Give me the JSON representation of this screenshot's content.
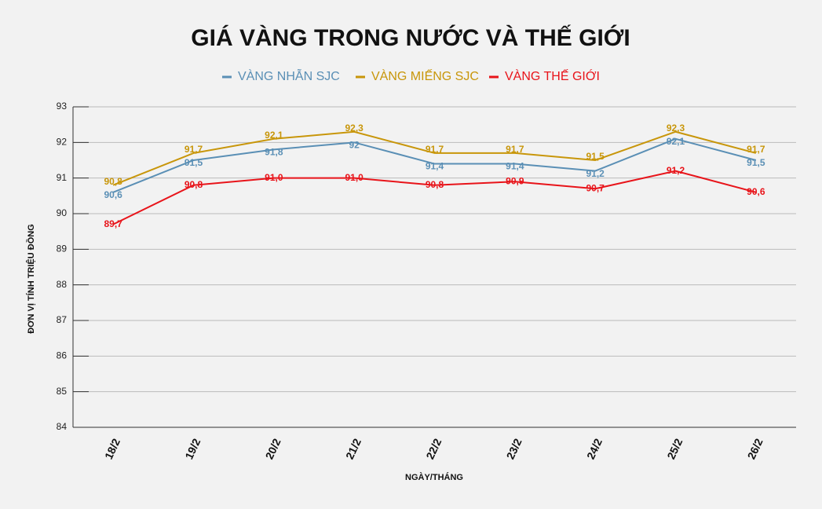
{
  "chart_data": {
    "type": "line",
    "title": "GIÁ VÀNG TRONG NƯỚC VÀ THẾ GIỚI",
    "x_label": "NGÀY/THÁNG",
    "y_label": "ĐƠN VỊ TÍNH TRIỆU ĐỒNG",
    "categories": [
      "18/2",
      "19/2",
      "20/2",
      "21/2",
      "22/2",
      "23/2",
      "24/2",
      "25/2",
      "26/2"
    ],
    "series": [
      {
        "name": "VÀNG NHẪN SJC",
        "color": "#5a8fb5",
        "values": [
          90.6,
          91.5,
          91.8,
          92,
          91.4,
          91.4,
          91.2,
          92.1,
          91.5
        ],
        "value_labels": [
          "90,6",
          "91,5",
          "91,8",
          "92",
          "91,4",
          "91,4",
          "91,2",
          "92,1",
          "91,5"
        ]
      },
      {
        "name": "VÀNG MIẾNG SJC",
        "color": "#c8960a",
        "values": [
          90.8,
          91.7,
          92.1,
          92.3,
          91.7,
          91.7,
          91.5,
          92.3,
          91.7
        ],
        "value_labels": [
          "90,8",
          "91,7",
          "92,1",
          "92,3",
          "91,7",
          "91,7",
          "91,5",
          "92,3",
          "91,7"
        ]
      },
      {
        "name": "VÀNG THẾ GIỚI",
        "color": "#e8141a",
        "values": [
          89.7,
          90.8,
          91.0,
          91.0,
          90.8,
          90.9,
          90.7,
          91.2,
          90.6
        ],
        "value_labels": [
          "89,7",
          "90,8",
          "91,0",
          "91,0",
          "90,8",
          "90,9",
          "90,7",
          "91,2",
          "90,6"
        ]
      }
    ],
    "ylim": [
      84,
      93
    ],
    "yticks": [
      84,
      85,
      86,
      87,
      88,
      89,
      90,
      91,
      92,
      93
    ],
    "grid": true
  }
}
